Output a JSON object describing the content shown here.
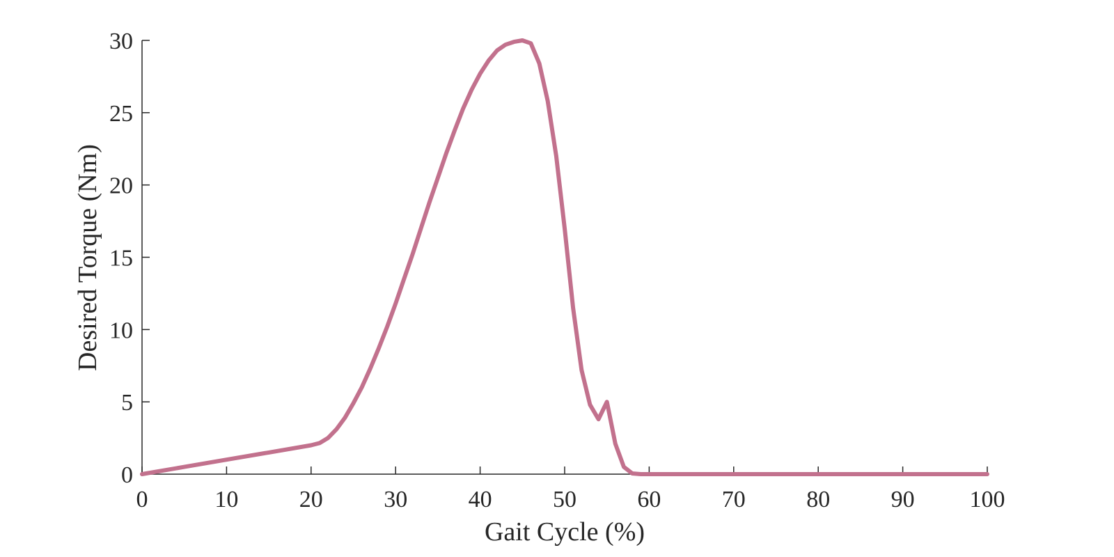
{
  "chart_data": {
    "type": "line",
    "title": "",
    "xlabel": "Gait Cycle (%)",
    "ylabel": "Desired Torque (Nm)",
    "xlim": [
      0,
      100
    ],
    "ylim": [
      0,
      30
    ],
    "xticks": [
      "0",
      "10",
      "20",
      "30",
      "40",
      "50",
      "60",
      "70",
      "80",
      "90",
      "100"
    ],
    "yticks": [
      "0",
      "5",
      "10",
      "15",
      "20",
      "25",
      "30"
    ],
    "grid": false,
    "line_color": "#c2718d",
    "series": [
      {
        "x": [
          0,
          5,
          10,
          15,
          20,
          21,
          22,
          23,
          24,
          25,
          26,
          27,
          28,
          29,
          30,
          31,
          32,
          33,
          34,
          35,
          36,
          37,
          38,
          39,
          40,
          41,
          42,
          43,
          44,
          45,
          46,
          47,
          48,
          49,
          50,
          51,
          52,
          53,
          54,
          55,
          56,
          57,
          58,
          59,
          60,
          61,
          65,
          70,
          80,
          90,
          100
        ],
        "y": [
          0,
          0.5,
          1.0,
          1.5,
          2.0,
          2.15,
          2.5,
          3.1,
          3.9,
          4.9,
          6.0,
          7.3,
          8.7,
          10.2,
          11.8,
          13.5,
          15.2,
          17.0,
          18.8,
          20.5,
          22.2,
          23.8,
          25.3,
          26.6,
          27.7,
          28.6,
          29.3,
          29.7,
          29.9,
          30.0,
          29.8,
          28.4,
          25.8,
          22.0,
          17.0,
          11.5,
          7.2,
          4.8,
          3.8,
          5.0,
          2.1,
          0.5,
          0.05,
          0,
          0,
          0,
          0,
          0,
          0,
          0,
          0
        ]
      }
    ]
  }
}
